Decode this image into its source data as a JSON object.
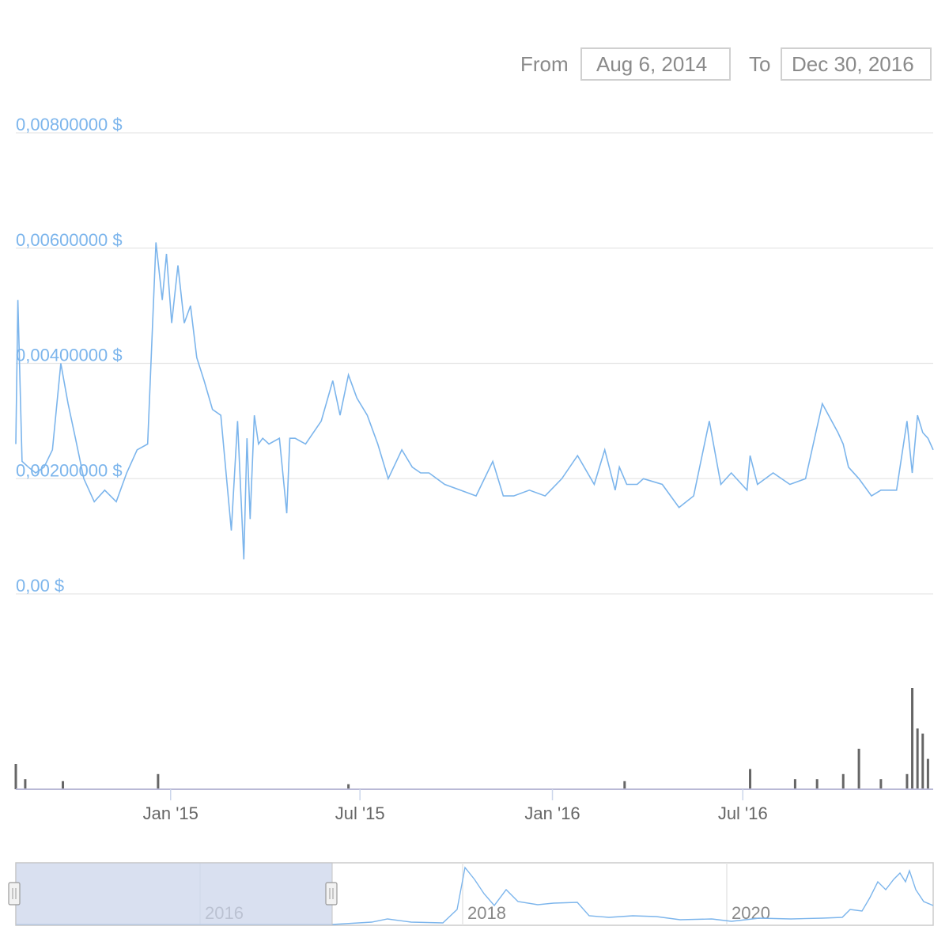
{
  "range_selector": {
    "from_label": "From",
    "from_value": "Aug 6, 2014",
    "to_label": "To",
    "to_value": "Dec 30, 2016"
  },
  "colors": {
    "line": "#7cb5ec",
    "axis_label": "#7cb5ec",
    "grid": "#e6e6e6",
    "volume": "#666666",
    "navigator_mask": "#ccd6eb"
  },
  "chart_data": {
    "type": "line",
    "title": "",
    "ylabel": "",
    "y_ticks": [
      "0,00800000 $",
      "0,00600000 $",
      "0,00400000 $",
      "0,00200000 $",
      "0,00 $"
    ],
    "y_tick_values": [
      0.008,
      0.006,
      0.004,
      0.002,
      0
    ],
    "ylim": [
      0,
      0.008
    ],
    "x_ticks": [
      "Jan '15",
      "Jul '15",
      "Jan '16",
      "Jul '16"
    ],
    "x_tick_dates": [
      "2015-01-01",
      "2015-07-01",
      "2016-01-01",
      "2016-07-01"
    ],
    "xlim": [
      "2014-08-06",
      "2016-12-30"
    ],
    "grid": true,
    "series": [
      {
        "x": [
          "2014-08-06",
          "2014-08-08",
          "2014-08-12",
          "2014-08-18",
          "2014-08-25",
          "2014-09-02",
          "2014-09-10",
          "2014-09-18",
          "2014-09-25",
          "2014-10-02",
          "2014-10-10",
          "2014-10-20",
          "2014-10-30",
          "2014-11-10",
          "2014-11-20",
          "2014-11-30",
          "2014-12-10",
          "2014-12-18",
          "2014-12-24",
          "2014-12-28",
          "2015-01-02",
          "2015-01-08",
          "2015-01-14",
          "2015-01-20",
          "2015-01-26",
          "2015-02-02",
          "2015-02-10",
          "2015-02-18",
          "2015-02-28",
          "2015-03-06",
          "2015-03-12",
          "2015-03-15",
          "2015-03-18",
          "2015-03-22",
          "2015-03-26",
          "2015-03-30",
          "2015-04-05",
          "2015-04-15",
          "2015-04-22",
          "2015-04-25",
          "2015-04-30",
          "2015-05-10",
          "2015-05-25",
          "2015-06-05",
          "2015-06-12",
          "2015-06-20",
          "2015-06-28",
          "2015-07-08",
          "2015-07-18",
          "2015-07-28",
          "2015-08-10",
          "2015-08-20",
          "2015-08-28",
          "2015-09-05",
          "2015-09-20",
          "2015-10-05",
          "2015-10-20",
          "2015-11-05",
          "2015-11-15",
          "2015-11-25",
          "2015-12-10",
          "2015-12-25",
          "2016-01-10",
          "2016-01-25",
          "2016-02-10",
          "2016-02-20",
          "2016-03-01",
          "2016-03-05",
          "2016-03-12",
          "2016-03-22",
          "2016-03-28",
          "2016-04-15",
          "2016-05-01",
          "2016-05-15",
          "2016-05-30",
          "2016-06-10",
          "2016-06-20",
          "2016-07-05",
          "2016-07-08",
          "2016-07-15",
          "2016-07-30",
          "2016-08-15",
          "2016-08-30",
          "2016-09-15",
          "2016-09-30",
          "2016-10-05",
          "2016-10-10",
          "2016-10-20",
          "2016-11-01",
          "2016-11-10",
          "2016-11-25",
          "2016-12-05",
          "2016-12-10",
          "2016-12-15",
          "2016-12-20",
          "2016-12-25",
          "2016-12-30"
        ],
        "y": [
          0.0026,
          0.0051,
          0.0023,
          0.0022,
          0.0021,
          0.0022,
          0.0025,
          0.004,
          0.0033,
          0.0027,
          0.002,
          0.0016,
          0.0018,
          0.0016,
          0.0021,
          0.0025,
          0.0026,
          0.0061,
          0.0051,
          0.0059,
          0.0047,
          0.0057,
          0.0047,
          0.005,
          0.0041,
          0.0037,
          0.0032,
          0.0031,
          0.0011,
          0.003,
          0.0006,
          0.0027,
          0.0013,
          0.0031,
          0.0026,
          0.0027,
          0.0026,
          0.0027,
          0.0014,
          0.0027,
          0.0027,
          0.0026,
          0.003,
          0.0037,
          0.0031,
          0.0038,
          0.0034,
          0.0031,
          0.0026,
          0.002,
          0.0025,
          0.0022,
          0.0021,
          0.0021,
          0.0019,
          0.0018,
          0.0017,
          0.0023,
          0.0017,
          0.0017,
          0.0018,
          0.0017,
          0.002,
          0.0024,
          0.0019,
          0.0025,
          0.0018,
          0.0022,
          0.0019,
          0.0019,
          0.002,
          0.0019,
          0.0015,
          0.0017,
          0.003,
          0.0019,
          0.0021,
          0.0018,
          0.0024,
          0.0019,
          0.0021,
          0.0019,
          0.002,
          0.0033,
          0.0028,
          0.0026,
          0.0022,
          0.002,
          0.0017,
          0.0018,
          0.0018,
          0.003,
          0.0021,
          0.0031,
          0.0028,
          0.0027,
          0.0025
        ]
      }
    ],
    "volume": {
      "x": [
        "2014-08-06",
        "2014-08-15",
        "2014-09-20",
        "2014-12-20",
        "2015-06-20",
        "2016-03-10",
        "2016-07-08",
        "2016-08-20",
        "2016-09-10",
        "2016-10-05",
        "2016-10-20",
        "2016-11-10",
        "2016-12-05",
        "2016-12-10",
        "2016-12-15",
        "2016-12-20",
        "2016-12-25"
      ],
      "values": [
        0.25,
        0.1,
        0.08,
        0.15,
        0.05,
        0.08,
        0.2,
        0.1,
        0.1,
        0.15,
        0.4,
        0.1,
        0.15,
        1.0,
        0.6,
        0.55,
        0.3
      ]
    },
    "navigator": {
      "x_ticks": [
        "2016",
        "2018",
        "2020"
      ],
      "selected_range": [
        "2014-08-06",
        "2016-12-30"
      ]
    }
  }
}
